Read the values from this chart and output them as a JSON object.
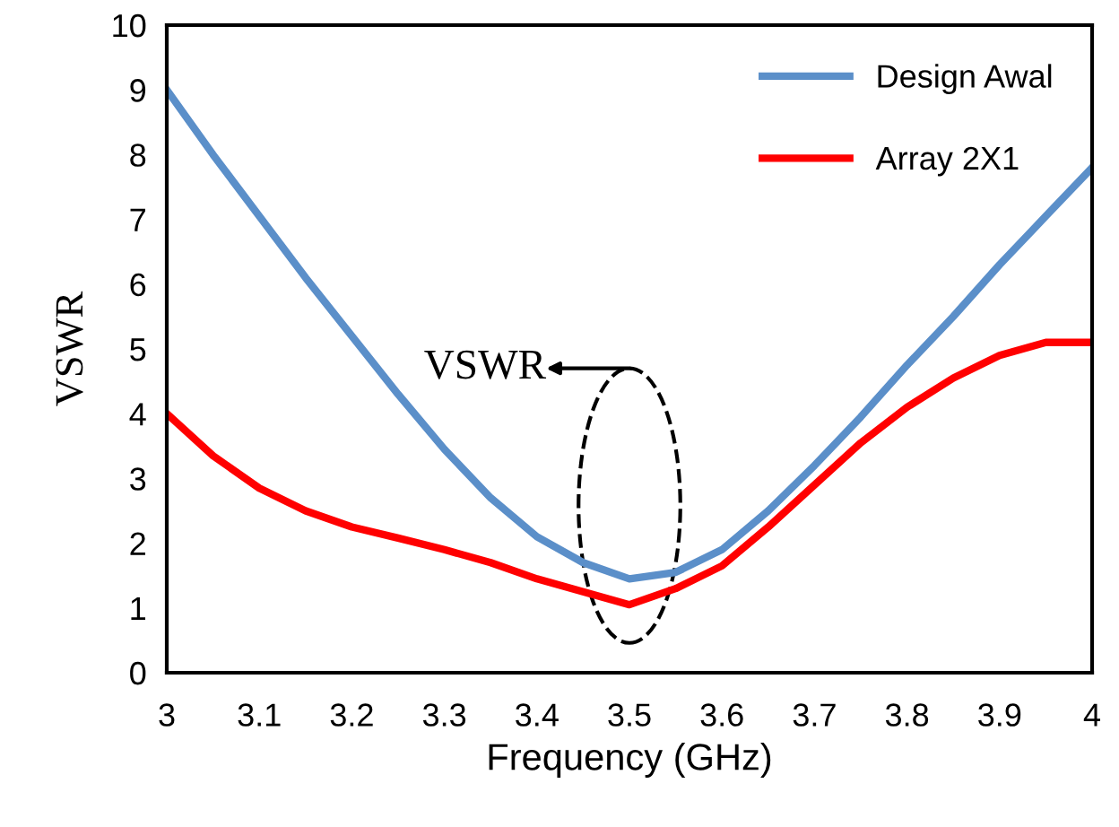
{
  "chart_data": {
    "type": "line",
    "xlabel": "Frequency (GHz)",
    "ylabel": "VSWR",
    "x": [
      3.0,
      3.05,
      3.1,
      3.15,
      3.2,
      3.25,
      3.3,
      3.35,
      3.4,
      3.45,
      3.5,
      3.55,
      3.6,
      3.65,
      3.7,
      3.75,
      3.8,
      3.85,
      3.9,
      3.95,
      4.0
    ],
    "series": [
      {
        "name": "Design Awal",
        "color": "#5b8fc9",
        "values": [
          9.0,
          8.0,
          7.05,
          6.1,
          5.2,
          4.3,
          3.45,
          2.7,
          2.1,
          1.7,
          1.45,
          1.55,
          1.9,
          2.5,
          3.2,
          3.95,
          4.75,
          5.5,
          6.3,
          7.05,
          7.8
        ]
      },
      {
        "name": "Array 2X1",
        "color": "#ff0000",
        "values": [
          4.0,
          3.35,
          2.85,
          2.5,
          2.25,
          2.08,
          1.9,
          1.7,
          1.45,
          1.25,
          1.05,
          1.3,
          1.65,
          2.25,
          2.9,
          3.55,
          4.1,
          4.55,
          4.9,
          5.1,
          5.1
        ]
      }
    ],
    "annotations": [
      "VSWR"
    ],
    "xlim": [
      3,
      4
    ],
    "xticks": [
      3,
      3.1,
      3.2,
      3.3,
      3.4,
      3.5,
      3.6,
      3.7,
      3.8,
      3.9,
      4
    ],
    "ylim": [
      0,
      10
    ],
    "yticks": [
      0,
      1,
      2,
      3,
      4,
      5,
      6,
      7,
      8,
      9,
      10
    ],
    "grid": false,
    "legend": "top right",
    "marker": "none",
    "line_style": "solid"
  }
}
